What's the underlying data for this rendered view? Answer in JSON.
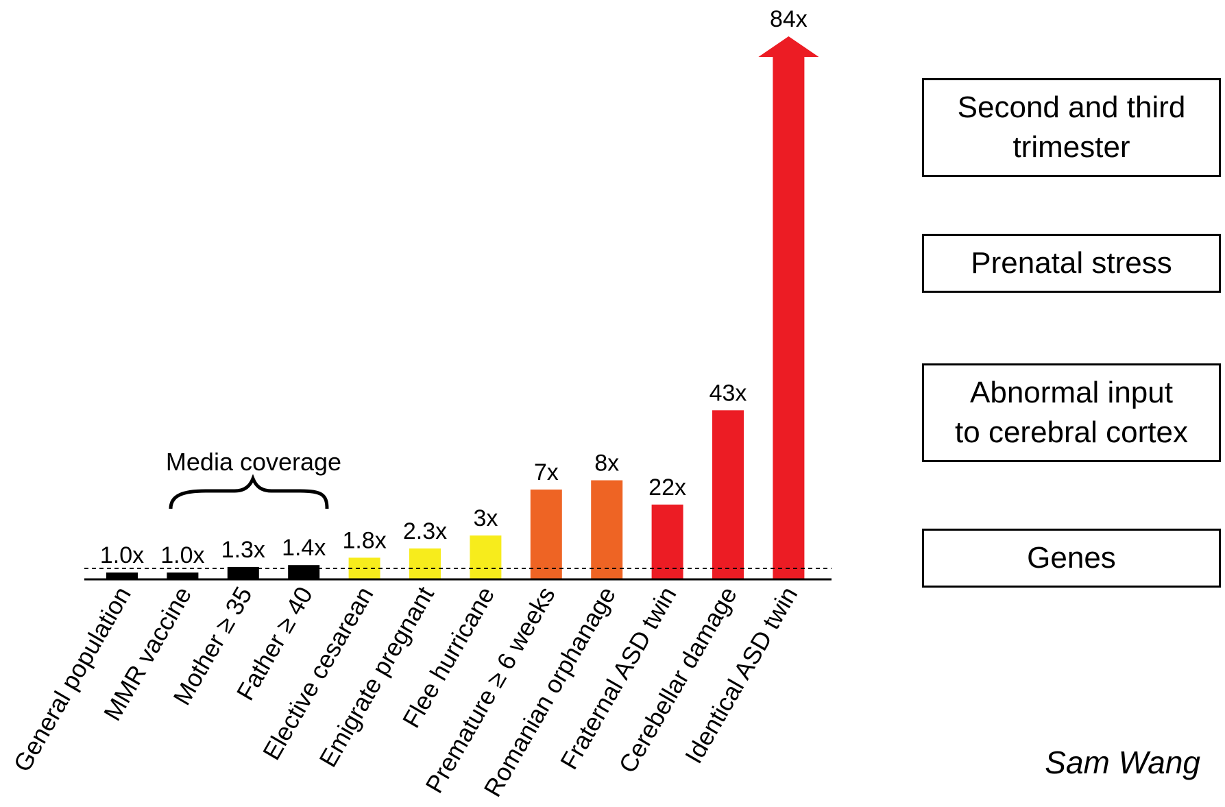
{
  "chart_data": {
    "type": "bar",
    "categories": [
      "General population",
      "MMR vaccine",
      "Mother ≥ 35",
      "Father ≥ 40",
      "Elective cesarean",
      "Emigrate pregnant",
      "Flee hurricane",
      "Premature ≥ 6 weeks",
      "Romanian orphanage",
      "Fraternal ASD twin",
      "Cerebellar damage",
      "Identical ASD twin"
    ],
    "values": [
      1.0,
      1.0,
      1.3,
      1.4,
      1.8,
      2.3,
      3,
      7,
      8,
      22,
      43,
      84
    ],
    "value_labels": [
      "1.0x",
      "1.0x",
      "1.3x",
      "1.4x",
      "1.8x",
      "2.3x",
      "3x",
      "7x",
      "8x",
      "22x",
      "43x",
      "84x"
    ],
    "bar_colors": [
      "#000000",
      "#000000",
      "#000000",
      "#000000",
      "#f7ec1c",
      "#f7ec1c",
      "#f7ec1c",
      "#ee6424",
      "#ee6424",
      "#ec1c24",
      "#ec1c24",
      "#ec1c24"
    ],
    "last_bar_arrow": true,
    "baseline_dashed": true,
    "grid": false,
    "annotation": {
      "text": "Media coverage",
      "spans_categories": [
        1,
        3
      ]
    },
    "legend": {
      "placement": "right",
      "items": [
        {
          "text": "Second and third trimester",
          "lines": [
            "Second and third",
            "trimester"
          ]
        },
        {
          "text": "Prenatal stress",
          "lines": [
            "Prenatal stress"
          ]
        },
        {
          "text": "Abnormal input to cerebral cortex",
          "lines": [
            "Abnormal input",
            "to cerebral cortex"
          ]
        },
        {
          "text": "Genes",
          "lines": [
            "Genes"
          ]
        }
      ]
    }
  },
  "author": "Sam Wang"
}
